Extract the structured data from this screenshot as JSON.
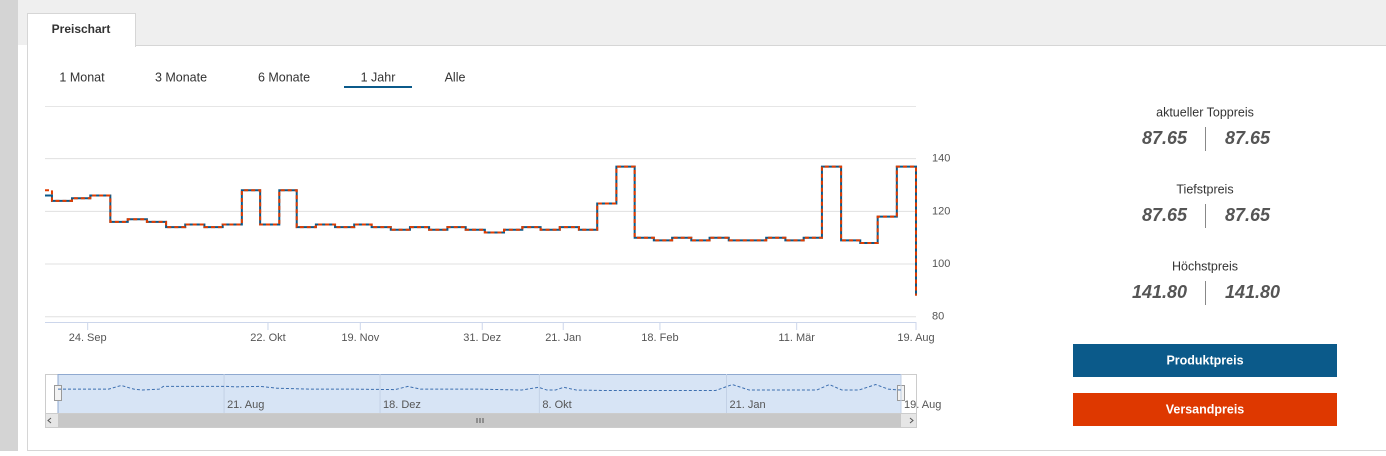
{
  "tabs": [
    "Preischart"
  ],
  "ranges": {
    "items": [
      "1 Monat",
      "3 Monate",
      "6 Monate",
      "1 Jahr",
      "Alle"
    ],
    "selected": 3
  },
  "stats": [
    {
      "label": "aktueller Toppreis",
      "product": "87.65",
      "shipping": "87.65"
    },
    {
      "label": "Tiefstpreis",
      "product": "87.65",
      "shipping": "87.65"
    },
    {
      "label": "Höchstpreis",
      "product": "141.80",
      "shipping": "141.80"
    }
  ],
  "chart_data": [
    {
      "type": "line",
      "step": true,
      "grid": true,
      "x": [
        0,
        0.8,
        3.1,
        5.2,
        7.5,
        9.5,
        11.7,
        13.9,
        16.1,
        18.3,
        20.4,
        22.6,
        24.7,
        26.9,
        28.9,
        31.1,
        33.3,
        35.5,
        37.5,
        39.7,
        41.9,
        44.1,
        46.2,
        48.3,
        50.5,
        52.7,
        54.8,
        56.9,
        59.1,
        61.3,
        63.4,
        65.6,
        67.7,
        69.9,
        72.0,
        74.2,
        76.3,
        78.5,
        80.6,
        82.8,
        85.0,
        87.1,
        89.2,
        91.4,
        93.6,
        95.6,
        97.8,
        100
      ],
      "series": [
        {
          "name": "Produktpreis",
          "color": "#0b5a8a",
          "values": [
            126,
            124,
            125,
            126,
            116,
            117,
            116,
            114,
            115,
            114,
            115,
            128,
            115,
            128,
            114,
            115,
            114,
            115,
            114,
            113,
            114,
            113,
            114,
            113,
            112,
            113,
            114,
            113,
            114,
            113,
            123,
            137,
            110,
            109,
            110,
            109,
            110,
            109,
            109,
            110,
            109,
            110,
            137,
            109,
            108,
            118,
            137,
            88
          ]
        },
        {
          "name": "Versandpreis",
          "color": "#e03c00",
          "values": [
            128,
            124,
            125,
            126,
            116,
            117,
            116,
            114,
            115,
            114,
            115,
            128,
            115,
            128,
            114,
            115,
            114,
            115,
            114,
            113,
            114,
            113,
            114,
            113,
            112,
            113,
            114,
            113,
            114,
            113,
            123,
            137,
            110,
            109,
            110,
            109,
            110,
            109,
            109,
            110,
            109,
            110,
            137,
            109,
            108,
            118,
            137,
            88
          ]
        }
      ],
      "xlim": [
        0,
        100
      ],
      "xticks": [
        {
          "value": 4.9,
          "label": "24. Sep"
        },
        {
          "value": 25.6,
          "label": "22. Okt"
        },
        {
          "value": 36.2,
          "label": "19. Nov"
        },
        {
          "value": 50.2,
          "label": "31. Dez"
        },
        {
          "value": 59.5,
          "label": "21. Jan"
        },
        {
          "value": 70.6,
          "label": "18. Feb"
        },
        {
          "value": 86.3,
          "label": "11. Mär"
        },
        {
          "value": 100,
          "label": "19. Aug"
        }
      ],
      "ylim": [
        78,
        160
      ],
      "yticks": [
        80,
        100,
        120,
        140
      ]
    },
    {
      "type": "line",
      "step": false,
      "grid": false,
      "x": [
        0,
        6,
        7.5,
        9,
        10,
        12,
        12.5,
        20,
        21,
        24,
        26,
        30,
        35,
        40,
        41.5,
        43,
        50,
        55,
        57,
        58,
        59,
        60,
        61.5,
        65,
        78,
        80,
        82,
        90,
        91.5,
        93,
        95,
        97,
        98.5,
        100
      ],
      "series": [
        {
          "name": "Produktpreis",
          "color": "#3d6fb0",
          "values": [
            112,
            112,
            120,
            112,
            110,
            112,
            118,
            118,
            117,
            118,
            114,
            112,
            112,
            111,
            118,
            112,
            112,
            110,
            116,
            110,
            110,
            116,
            110,
            109,
            109,
            122,
            110,
            110,
            122,
            110,
            110,
            122,
            112,
            110
          ]
        }
      ],
      "xlim": [
        0,
        100
      ],
      "xticks": [
        {
          "value": 19.7,
          "label": "21. Aug"
        },
        {
          "value": 38.2,
          "label": "18. Dez"
        },
        {
          "value": 57.1,
          "label": "8. Okt"
        },
        {
          "value": 79.3,
          "label": "21. Jan"
        },
        {
          "value": 100,
          "label": "19. Aug"
        }
      ],
      "ylim": [
        60,
        145
      ]
    }
  ]
}
